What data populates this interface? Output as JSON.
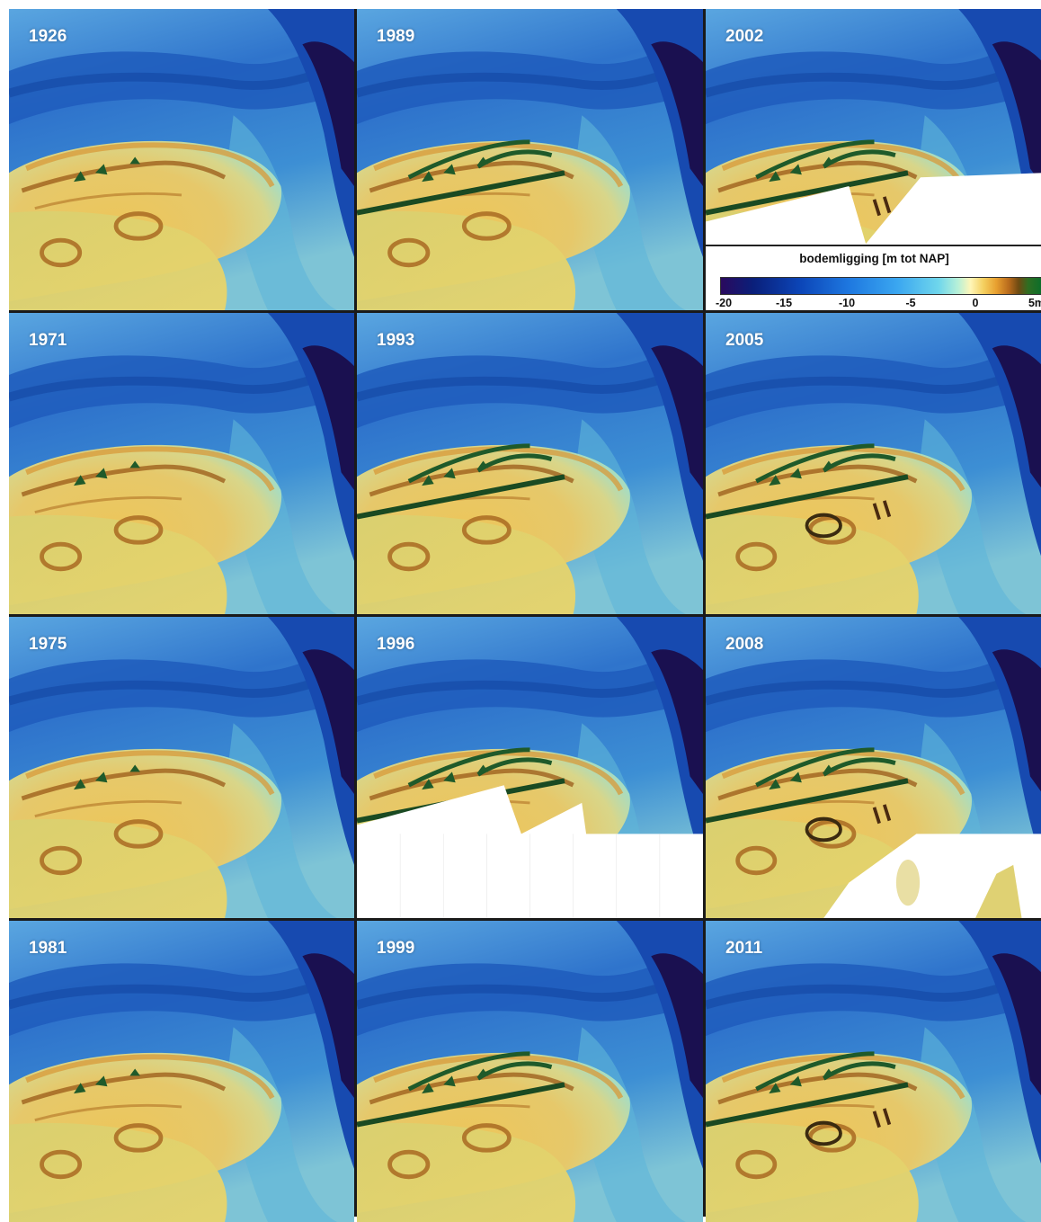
{
  "panels": [
    {
      "year": "1926",
      "col": 0,
      "row": 0,
      "variant": "early",
      "mask": null
    },
    {
      "year": "1989",
      "col": 1,
      "row": 0,
      "variant": "mid",
      "mask": null
    },
    {
      "year": "2002",
      "col": 2,
      "row": 0,
      "variant": "late",
      "mask": "legend"
    },
    {
      "year": "1971",
      "col": 0,
      "row": 1,
      "variant": "early",
      "mask": null
    },
    {
      "year": "1993",
      "col": 1,
      "row": 1,
      "variant": "mid",
      "mask": null
    },
    {
      "year": "2005",
      "col": 2,
      "row": 1,
      "variant": "late",
      "mask": null
    },
    {
      "year": "1975",
      "col": 0,
      "row": 2,
      "variant": "early",
      "mask": null
    },
    {
      "year": "1996",
      "col": 1,
      "row": 2,
      "variant": "mid",
      "mask": "bottom"
    },
    {
      "year": "2008",
      "col": 2,
      "row": 2,
      "variant": "late",
      "mask": "corner"
    },
    {
      "year": "1981",
      "col": 0,
      "row": 3,
      "variant": "early",
      "mask": null
    },
    {
      "year": "1999",
      "col": 1,
      "row": 3,
      "variant": "mid",
      "mask": null
    },
    {
      "year": "2011",
      "col": 2,
      "row": 3,
      "variant": "late",
      "mask": null
    }
  ],
  "legend": {
    "title": "bodemligging [m tot NAP]",
    "ticks": [
      "-20",
      "-15",
      "-10",
      "-5",
      "0",
      "5m"
    ]
  },
  "colors": {
    "deep": "#1a1050",
    "channel": "#1c55b8",
    "sea": "#3a8ad8",
    "shallow": "#7cc8dc",
    "flat": "#e8c860",
    "dune": "#7a4412",
    "vegetation": "#1f5a2a"
  }
}
